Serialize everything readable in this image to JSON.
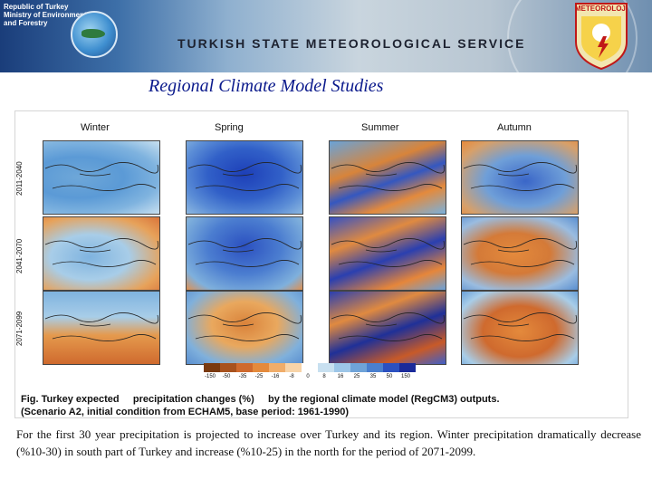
{
  "header": {
    "ministry_lines": [
      "Republic of Turkey",
      "Ministry of Environment",
      "and Forestry"
    ],
    "service_title": "TURKISH STATE METEOROLOGICAL SERVICE",
    "logo_text": "METEOROLOJI"
  },
  "page": {
    "title": "Regional Climate Model Studies"
  },
  "figure": {
    "seasons": [
      "Winter",
      "Spring",
      "Summer",
      "Autumn"
    ],
    "periods": [
      "2011-2040",
      "2041-2070",
      "2071-2099"
    ],
    "colorbar_labels": [
      "-150",
      "-50",
      "-35",
      "-25",
      "-16",
      "-8",
      "0",
      "8",
      "16",
      "25",
      "35",
      "50",
      "150"
    ],
    "colorbar_colors": [
      "#7a3a10",
      "#a8521e",
      "#cf6a2e",
      "#e48a3c",
      "#f0ad6a",
      "#f8d4a8",
      "#ffffff",
      "#c8e0f0",
      "#9dc6e8",
      "#6fa3d8",
      "#4a7fce",
      "#2b50c0",
      "#1a2a9a"
    ],
    "caption_part1": "Fig. Turkey expected",
    "caption_part2": "precipitation changes (%)",
    "caption_part3": "by the regional climate model (RegCM3) outputs.",
    "caption_line2": "(Scenario A2, initial condition from ECHAM5, base period: 1961-1990)"
  },
  "body": {
    "paragraph": "For the first 30 year  precipitation is projected to increase over Turkey and its region. Winter precipitation dramatically decrease (%10-30) in south part of Turkey and increase (%10-25) in the north for the period of 2071-2099."
  }
}
